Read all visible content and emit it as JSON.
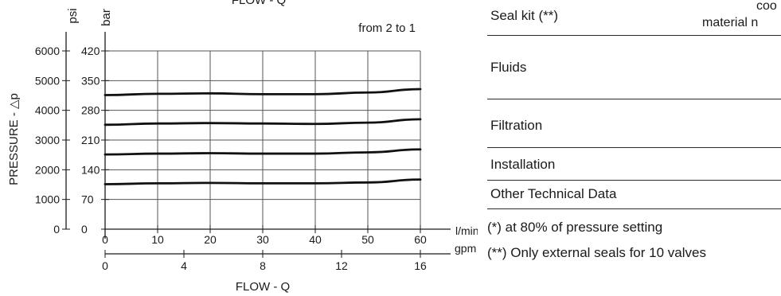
{
  "chart_data": {
    "type": "line",
    "top_title": "FLOW - Q",
    "annotation": "from 2 to 1",
    "ylabel": "PRESSURE - △p",
    "xlabel": "FLOW - Q",
    "y_left_unit": "psi",
    "y_right_unit": "bar",
    "x_unit_primary": "l/min",
    "x_unit_secondary": "gpm",
    "xlim": [
      0,
      60
    ],
    "ylim_bar": [
      0,
      420
    ],
    "ylim_psi": [
      0,
      6000
    ],
    "x_ticks_lmin": [
      "0",
      "10",
      "20",
      "30",
      "40",
      "50",
      "60"
    ],
    "x_ticks_gpm": [
      "0",
      "4",
      "8",
      "12",
      "16"
    ],
    "y_ticks_bar": [
      "0",
      "70",
      "140",
      "210",
      "280",
      "350",
      "420"
    ],
    "y_ticks_psi": [
      "0",
      "1000",
      "2000",
      "3000",
      "4000",
      "5000",
      "6000"
    ],
    "grid": true,
    "series": [
      {
        "x": [
          0,
          10,
          20,
          30,
          40,
          50,
          60
        ],
        "values": [
          316,
          319,
          320,
          318,
          318,
          322,
          330
        ]
      },
      {
        "x": [
          0,
          10,
          20,
          30,
          40,
          50,
          60
        ],
        "values": [
          246,
          249,
          250,
          249,
          248,
          251,
          259
        ]
      },
      {
        "x": [
          0,
          10,
          20,
          30,
          40,
          50,
          60
        ],
        "values": [
          176,
          178,
          179,
          178,
          178,
          181,
          188
        ]
      },
      {
        "x": [
          0,
          10,
          20,
          30,
          40,
          50,
          60
        ],
        "values": [
          106,
          108,
          109,
          108,
          108,
          110,
          117
        ]
      }
    ]
  },
  "table": {
    "rows": [
      {
        "label": "Seal kit (**)",
        "cut_line1": "coo",
        "cut_line2": "material n"
      },
      {
        "label": "Fluids"
      },
      {
        "label": "Filtration"
      },
      {
        "label": "Installation"
      },
      {
        "label": "Other Technical Data"
      }
    ],
    "notes": [
      "(*) at 80% of pressure setting",
      "(**) Only external seals for 10 valves"
    ]
  }
}
